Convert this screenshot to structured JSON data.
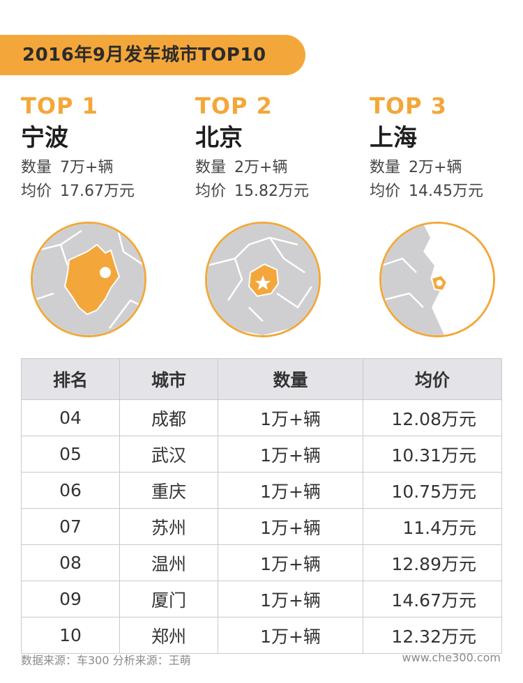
{
  "header": {
    "title": "2016年9月发车城市TOP10"
  },
  "top3": [
    {
      "rank": "TOP 1",
      "city": "宁波",
      "qty_label": "数量",
      "qty": "7万+辆",
      "price_label": "均价",
      "price": "17.67万元"
    },
    {
      "rank": "TOP 2",
      "city": "北京",
      "qty_label": "数量",
      "qty": "2万+辆",
      "price_label": "均价",
      "price": "15.82万元"
    },
    {
      "rank": "TOP 3",
      "city": "上海",
      "qty_label": "数量",
      "qty": "2万+辆",
      "price_label": "均价",
      "price": "14.45万元"
    }
  ],
  "colors": {
    "accent": "#f3a73a",
    "map_gray": "#cfcfd1",
    "map_line": "#ffffff",
    "table_header": "#e4e3e8"
  },
  "table": {
    "headers": [
      "排名",
      "城市",
      "数量",
      "均价"
    ],
    "rows": [
      [
        "04",
        "成都",
        "1万+辆",
        "12.08万元"
      ],
      [
        "05",
        "武汉",
        "1万+辆",
        "10.31万元"
      ],
      [
        "06",
        "重庆",
        "1万+辆",
        "10.75万元"
      ],
      [
        "07",
        "苏州",
        "1万+辆",
        "11.4万元"
      ],
      [
        "08",
        "温州",
        "1万+辆",
        "12.89万元"
      ],
      [
        "09",
        "厦门",
        "1万+辆",
        "14.67万元"
      ],
      [
        "10",
        "郑州",
        "1万+辆",
        "12.32万元"
      ]
    ]
  },
  "footer": {
    "source": "数据来源：车300 分析来源：王萌",
    "url": "www.che300.com"
  }
}
